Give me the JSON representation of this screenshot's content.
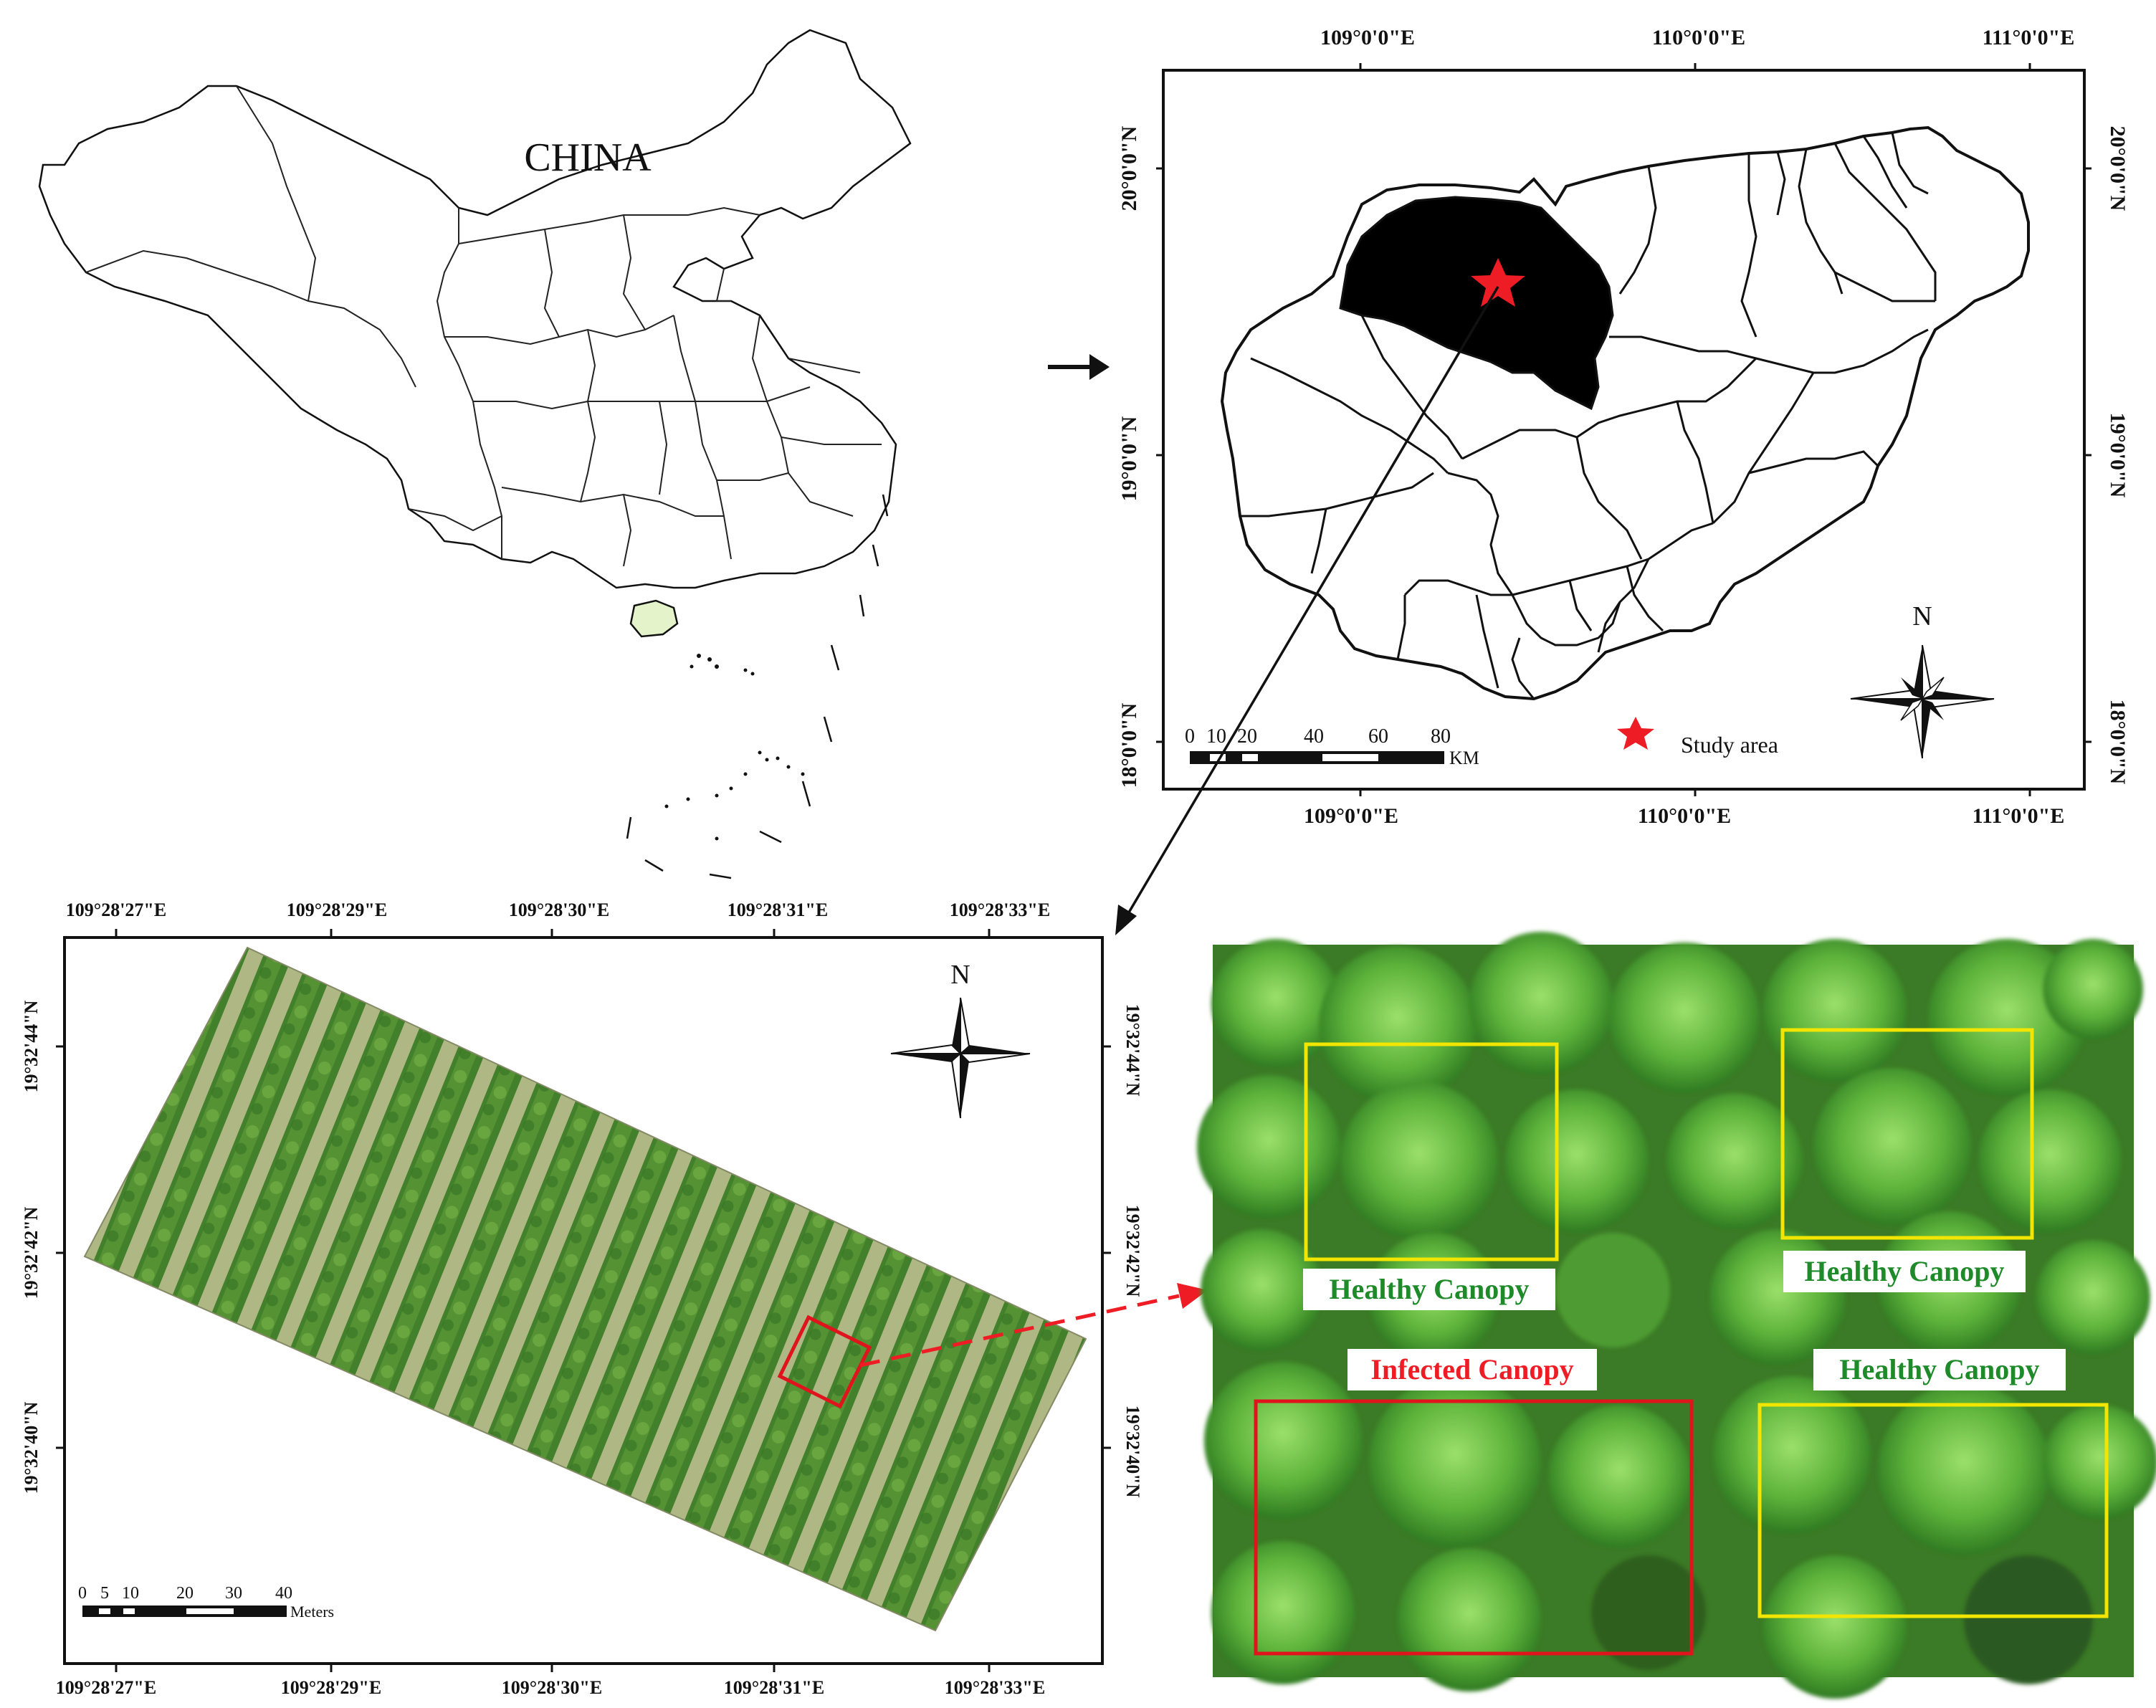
{
  "china_map": {
    "label": "CHINA",
    "highlight_color": "#e4f3c9"
  },
  "hainan_map": {
    "top_lon_ticks": [
      "109°0'0\"E",
      "110°0'0\"E",
      "111°0'0\"E"
    ],
    "bottom_lon_ticks": [
      "109°0'0\"E",
      "110°0'0\"E",
      "111°0'0\"E"
    ],
    "lat_ticks": [
      "20°0'0\"N",
      "19°0'0\"N",
      "18°0'0\"N"
    ],
    "scale_ticks": [
      "0",
      "10",
      "20",
      "40",
      "60",
      "80"
    ],
    "scale_unit": "KM",
    "legend_label": "Study area",
    "north_label": "N",
    "highlight_color": "#e4f3c9",
    "star_color": "#ee1c24"
  },
  "orthomosaic_map": {
    "top_lon_ticks": [
      "109°28'27\"E",
      "109°28'29\"E",
      "109°28'30\"E",
      "109°28'31\"E",
      "109°28'33\"E"
    ],
    "bottom_lon_ticks": [
      "109°28'27\"E",
      "109°28'29\"E",
      "109°28'30\"E",
      "109°28'31\"E",
      "109°28'33\"E"
    ],
    "lat_ticks": [
      "19°32'44\"N",
      "19°32'42\"N",
      "19°32'40\"N"
    ],
    "scale_ticks": [
      "0",
      "5",
      "10",
      "20",
      "30",
      "40"
    ],
    "scale_unit": "Meters",
    "north_label": "N"
  },
  "canopy_panel": {
    "boxes": [
      {
        "label": "Healthy Canopy",
        "status": "healthy"
      },
      {
        "label": "Healthy Canopy",
        "status": "healthy"
      },
      {
        "label": "Infected Canopy",
        "status": "infected"
      },
      {
        "label": "Healthy Canopy",
        "status": "healthy"
      }
    ],
    "healthy_color": "#1e8a2a",
    "infected_color": "#ee1c24",
    "healthy_box_color": "#f2e600",
    "infected_box_color": "#e0141c"
  }
}
